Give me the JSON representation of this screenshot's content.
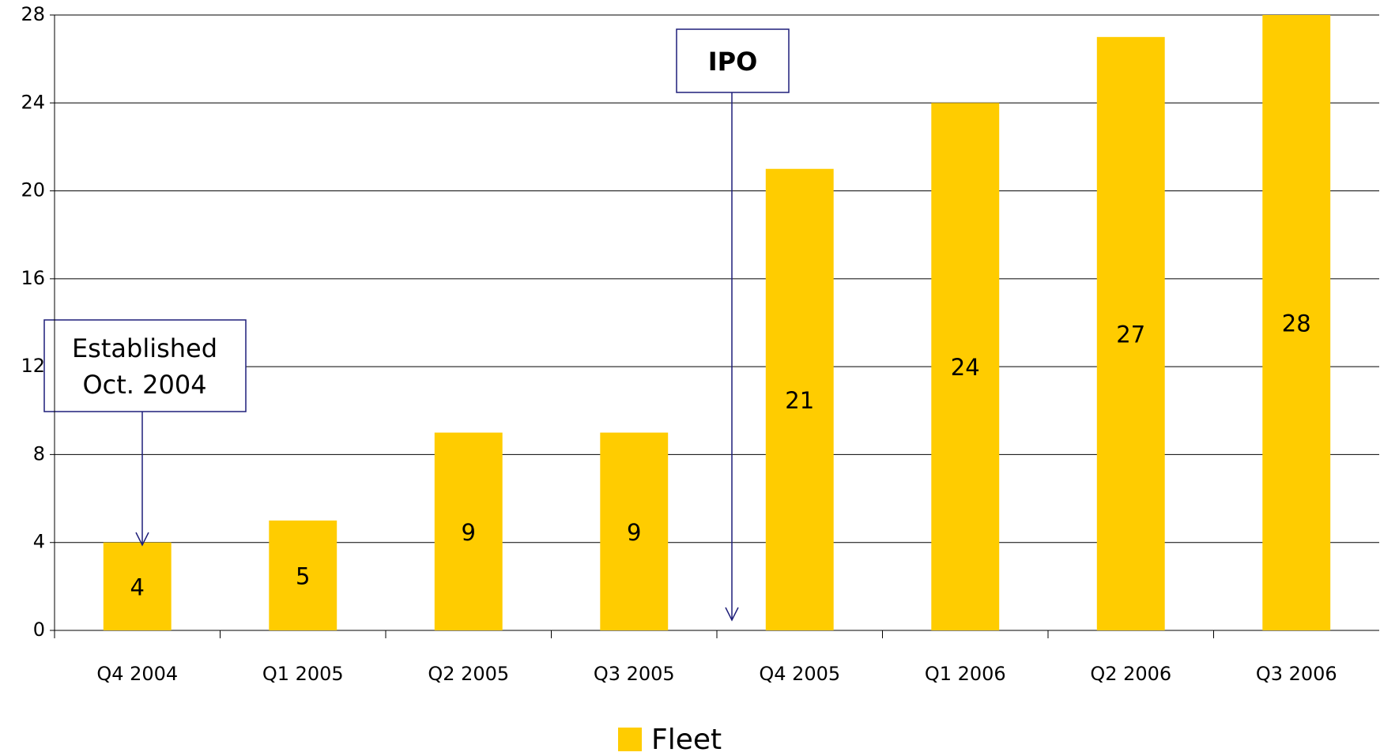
{
  "chart_data": {
    "type": "bar",
    "categories": [
      "Q4 2004",
      "Q1 2005",
      "Q2 2005",
      "Q3 2005",
      "Q4 2005",
      "Q1 2006",
      "Q2 2006",
      "Q3 2006"
    ],
    "series": [
      {
        "name": "Fleet",
        "color": "#ffcc00",
        "values": [
          4,
          5,
          9,
          9,
          21,
          24,
          27,
          28
        ]
      }
    ],
    "ylim": [
      0,
      28
    ],
    "yticks": [
      0,
      4,
      8,
      12,
      16,
      20,
      24,
      28
    ],
    "grid": true,
    "legend": "bottom",
    "annotations": [
      {
        "text": [
          "Established",
          "Oct. 2004"
        ],
        "category": 0
      },
      {
        "text": [
          "IPO"
        ],
        "category": 4
      }
    ]
  }
}
